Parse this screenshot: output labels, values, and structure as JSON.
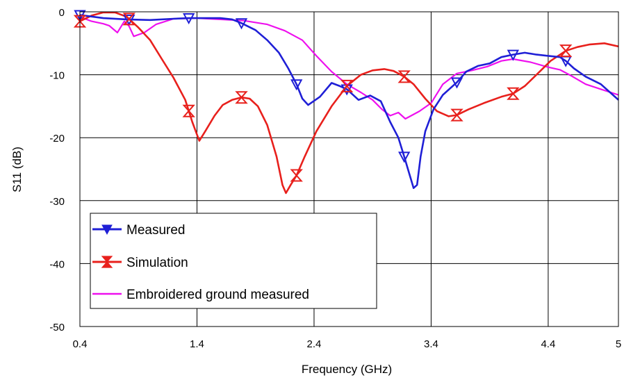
{
  "chart_data": {
    "type": "line",
    "xlabel": "Frequency (GHz)",
    "ylabel": "S11 (dB)",
    "xlim": [
      0.4,
      5.0
    ],
    "ylim": [
      -50,
      0
    ],
    "x_ticks": [
      0.4,
      1.4,
      2.4,
      3.4,
      4.4,
      5.0
    ],
    "x_tick_labels": [
      "0.4",
      "1.4",
      "2.4",
      "3.4",
      "4.4",
      "5"
    ],
    "y_ticks": [
      0,
      -10,
      -20,
      -30,
      -40,
      -50
    ],
    "y_tick_labels": [
      "0",
      "-10",
      "-20",
      "-30",
      "-40",
      "-50"
    ],
    "grid": true,
    "legend_position": "bottom-left",
    "series": [
      {
        "name": "Measured",
        "color": "#1f1fd6",
        "marker": "triangle-down",
        "points": [
          [
            0.4,
            -0.5
          ],
          [
            0.6,
            -1.0
          ],
          [
            0.8,
            -1.2
          ],
          [
            1.0,
            -1.3
          ],
          [
            1.2,
            -1.1
          ],
          [
            1.33,
            -1.0
          ],
          [
            1.5,
            -1.0
          ],
          [
            1.6,
            -1.0
          ],
          [
            1.7,
            -1.2
          ],
          [
            1.78,
            -1.8
          ],
          [
            1.9,
            -2.9
          ],
          [
            2.0,
            -4.5
          ],
          [
            2.1,
            -6.5
          ],
          [
            2.18,
            -9.0
          ],
          [
            2.25,
            -11.5
          ],
          [
            2.3,
            -13.8
          ],
          [
            2.35,
            -14.8
          ],
          [
            2.45,
            -13.5
          ],
          [
            2.55,
            -11.3
          ],
          [
            2.62,
            -11.8
          ],
          [
            2.68,
            -12.3
          ],
          [
            2.78,
            -14.0
          ],
          [
            2.88,
            -13.3
          ],
          [
            2.97,
            -14.2
          ],
          [
            3.05,
            -17.5
          ],
          [
            3.12,
            -20.0
          ],
          [
            3.17,
            -23.0
          ],
          [
            3.21,
            -25.5
          ],
          [
            3.25,
            -28.0
          ],
          [
            3.28,
            -27.5
          ],
          [
            3.31,
            -23.0
          ],
          [
            3.35,
            -19.0
          ],
          [
            3.42,
            -15.5
          ],
          [
            3.5,
            -13.2
          ],
          [
            3.62,
            -11.2
          ],
          [
            3.7,
            -9.5
          ],
          [
            3.8,
            -8.6
          ],
          [
            3.9,
            -8.2
          ],
          [
            4.0,
            -7.2
          ],
          [
            4.1,
            -6.8
          ],
          [
            4.2,
            -6.5
          ],
          [
            4.3,
            -6.8
          ],
          [
            4.4,
            -7.0
          ],
          [
            4.5,
            -7.2
          ],
          [
            4.55,
            -7.8
          ],
          [
            4.62,
            -9.0
          ],
          [
            4.72,
            -10.3
          ],
          [
            4.85,
            -11.5
          ],
          [
            5.0,
            -14.0
          ]
        ],
        "marker_x": [
          0.4,
          0.82,
          1.33,
          1.78,
          2.25,
          2.68,
          3.17,
          3.62,
          4.1,
          4.55
        ]
      },
      {
        "name": "Simulation",
        "color": "#e8201c",
        "marker": "hourglass",
        "points": [
          [
            0.4,
            -1.5
          ],
          [
            0.5,
            -0.6
          ],
          [
            0.6,
            -0.1
          ],
          [
            0.7,
            -0.1
          ],
          [
            0.8,
            -0.8
          ],
          [
            0.9,
            -2.5
          ],
          [
            1.0,
            -4.5
          ],
          [
            1.1,
            -7.5
          ],
          [
            1.2,
            -10.5
          ],
          [
            1.3,
            -14.0
          ],
          [
            1.36,
            -17.5
          ],
          [
            1.42,
            -20.5
          ],
          [
            1.47,
            -19.0
          ],
          [
            1.55,
            -16.5
          ],
          [
            1.62,
            -14.8
          ],
          [
            1.7,
            -14.0
          ],
          [
            1.78,
            -13.6
          ],
          [
            1.85,
            -13.8
          ],
          [
            1.92,
            -15.0
          ],
          [
            2.0,
            -18.0
          ],
          [
            2.08,
            -23.0
          ],
          [
            2.13,
            -27.5
          ],
          [
            2.16,
            -28.8
          ],
          [
            2.2,
            -27.5
          ],
          [
            2.25,
            -26.0
          ],
          [
            2.32,
            -23.0
          ],
          [
            2.42,
            -19.0
          ],
          [
            2.55,
            -15.0
          ],
          [
            2.68,
            -11.8
          ],
          [
            2.8,
            -10.0
          ],
          [
            2.9,
            -9.3
          ],
          [
            3.0,
            -9.1
          ],
          [
            3.08,
            -9.4
          ],
          [
            3.17,
            -10.3
          ],
          [
            3.25,
            -11.5
          ],
          [
            3.35,
            -13.8
          ],
          [
            3.45,
            -15.8
          ],
          [
            3.55,
            -16.6
          ],
          [
            3.62,
            -16.4
          ],
          [
            3.72,
            -15.5
          ],
          [
            3.85,
            -14.5
          ],
          [
            4.0,
            -13.5
          ],
          [
            4.1,
            -13.0
          ],
          [
            4.2,
            -11.8
          ],
          [
            4.3,
            -10.0
          ],
          [
            4.42,
            -7.8
          ],
          [
            4.55,
            -6.2
          ],
          [
            4.65,
            -5.6
          ],
          [
            4.75,
            -5.2
          ],
          [
            4.88,
            -5.0
          ],
          [
            5.0,
            -5.5
          ]
        ],
        "marker_x": [
          0.4,
          0.82,
          1.33,
          1.78,
          2.25,
          2.68,
          3.17,
          3.62,
          4.1,
          4.55
        ]
      },
      {
        "name": "Embroidered ground measured",
        "color": "#ee10ee",
        "points": [
          [
            0.4,
            -0.8
          ],
          [
            0.5,
            -1.5
          ],
          [
            0.6,
            -1.9
          ],
          [
            0.65,
            -2.2
          ],
          [
            0.72,
            -3.3
          ],
          [
            0.78,
            -1.5
          ],
          [
            0.82,
            -2.3
          ],
          [
            0.86,
            -3.9
          ],
          [
            0.95,
            -3.3
          ],
          [
            1.05,
            -2.0
          ],
          [
            1.2,
            -1.1
          ],
          [
            1.4,
            -1.0
          ],
          [
            1.6,
            -1.2
          ],
          [
            1.8,
            -1.4
          ],
          [
            2.0,
            -2.0
          ],
          [
            2.15,
            -3.0
          ],
          [
            2.3,
            -4.5
          ],
          [
            2.42,
            -7.0
          ],
          [
            2.55,
            -9.5
          ],
          [
            2.68,
            -11.5
          ],
          [
            2.8,
            -12.8
          ],
          [
            2.9,
            -14.0
          ],
          [
            2.98,
            -15.5
          ],
          [
            3.05,
            -16.5
          ],
          [
            3.12,
            -16.0
          ],
          [
            3.18,
            -17.0
          ],
          [
            3.3,
            -15.8
          ],
          [
            3.4,
            -14.5
          ],
          [
            3.5,
            -11.5
          ],
          [
            3.62,
            -9.8
          ],
          [
            3.75,
            -9.3
          ],
          [
            3.88,
            -8.7
          ],
          [
            4.0,
            -7.8
          ],
          [
            4.1,
            -7.5
          ],
          [
            4.25,
            -8.0
          ],
          [
            4.4,
            -8.8
          ],
          [
            4.5,
            -9.2
          ],
          [
            4.6,
            -10.2
          ],
          [
            4.72,
            -11.5
          ],
          [
            4.85,
            -12.3
          ],
          [
            5.0,
            -13.2
          ]
        ]
      }
    ]
  }
}
